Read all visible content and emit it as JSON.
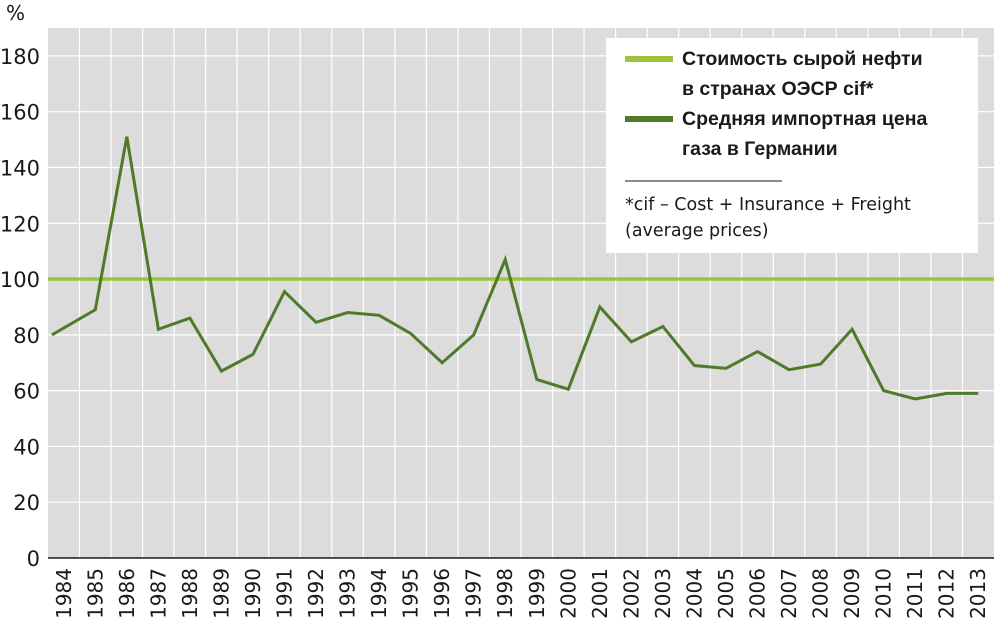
{
  "chart_data": {
    "type": "line",
    "unit_label": "%",
    "x": [
      "1984",
      "1985",
      "1986",
      "1987",
      "1988",
      "1989",
      "1990",
      "1991",
      "1992",
      "1993",
      "1994",
      "1995",
      "1996",
      "1997",
      "1998",
      "1999",
      "2000",
      "2001",
      "2002",
      "2003",
      "2004",
      "2005",
      "2006",
      "2007",
      "2008",
      "2009",
      "2010",
      "2011",
      "2012",
      "2013"
    ],
    "series": [
      {
        "name": "Стоимость сырой нефти в странах ОЭСР cif*",
        "legend_lines": [
          "Стоимость сырой нефти",
          "в странах ОЭСР cif*"
        ],
        "color": "#9bc53d",
        "values": [
          100,
          100,
          100,
          100,
          100,
          100,
          100,
          100,
          100,
          100,
          100,
          100,
          100,
          100,
          100,
          100,
          100,
          100,
          100,
          100,
          100,
          100,
          100,
          100,
          100,
          100,
          100,
          100,
          100,
          100
        ]
      },
      {
        "name": "Средняя импортная цена газа в Германии",
        "legend_lines": [
          "Средняя импортная цена",
          "газа в Германии"
        ],
        "color": "#4e7a2a",
        "values": [
          80,
          89,
          151,
          82,
          86,
          67,
          73,
          95.5,
          84.5,
          88,
          87,
          80.5,
          70,
          80,
          107,
          64,
          60.5,
          90,
          77.5,
          83,
          69,
          68,
          74,
          67.5,
          69.5,
          82,
          60,
          57,
          59,
          59
        ]
      }
    ],
    "ylim": [
      0,
      190
    ],
    "yticks": [
      0,
      20,
      40,
      60,
      80,
      100,
      120,
      140,
      160,
      180
    ],
    "grid": true,
    "legend_position": "top-right",
    "note_lines": [
      "*cif – Cost + Insurance + Freight",
      "(average prices)"
    ],
    "colors": {
      "background": "#dcdcdc",
      "gridline": "#ffffff",
      "axis": "#1a1a1a"
    }
  }
}
